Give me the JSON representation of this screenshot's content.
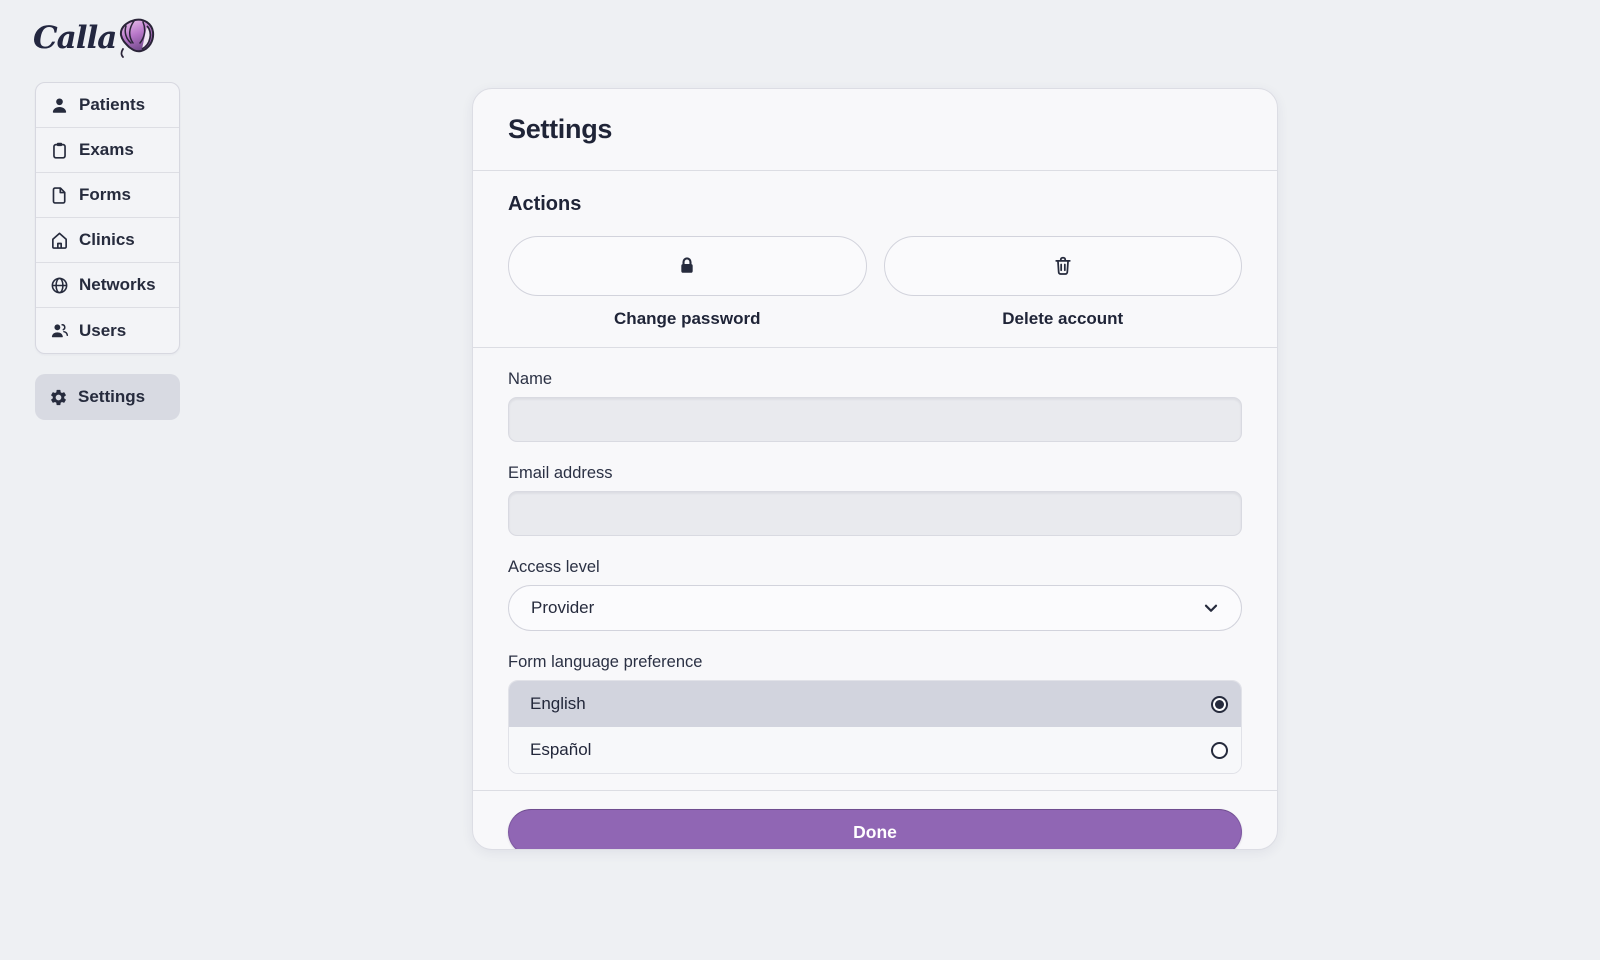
{
  "colors": {
    "accent_purple": "#9066b4",
    "text_dark": "#262b3d",
    "selected_row": "#d2d4de",
    "page_background": "#eef0f3"
  },
  "logo": {
    "brand": "Calla",
    "icon": "flower-icon"
  },
  "sidebar": {
    "items": [
      {
        "id": "patients",
        "label": "Patients",
        "icon": "person-icon"
      },
      {
        "id": "exams",
        "label": "Exams",
        "icon": "clipboard-icon"
      },
      {
        "id": "forms",
        "label": "Forms",
        "icon": "document-icon"
      },
      {
        "id": "clinics",
        "label": "Clinics",
        "icon": "home-icon"
      },
      {
        "id": "networks",
        "label": "Networks",
        "icon": "globe-icon"
      },
      {
        "id": "users",
        "label": "Users",
        "icon": "users-icon"
      }
    ],
    "settings": {
      "id": "settings",
      "label": "Settings",
      "icon": "gear-icon",
      "active": true
    }
  },
  "panel": {
    "title": "Settings",
    "actions": {
      "heading": "Actions",
      "buttons": [
        {
          "id": "change-password",
          "label": "Change password",
          "icon": "lock-icon"
        },
        {
          "id": "delete-account",
          "label": "Delete account",
          "icon": "trash-icon"
        }
      ]
    },
    "fields": {
      "name": {
        "label": "Name",
        "value": "",
        "placeholder": ""
      },
      "email": {
        "label": "Email address",
        "value": "",
        "placeholder": ""
      },
      "access_level": {
        "label": "Access level",
        "value": "Provider",
        "icon": "chevron-down-icon"
      },
      "language": {
        "label": "Form language preference",
        "options": [
          {
            "label": "English",
            "selected": true
          },
          {
            "label": "Español",
            "selected": false
          }
        ]
      }
    },
    "footer": {
      "done_label": "Done"
    }
  }
}
